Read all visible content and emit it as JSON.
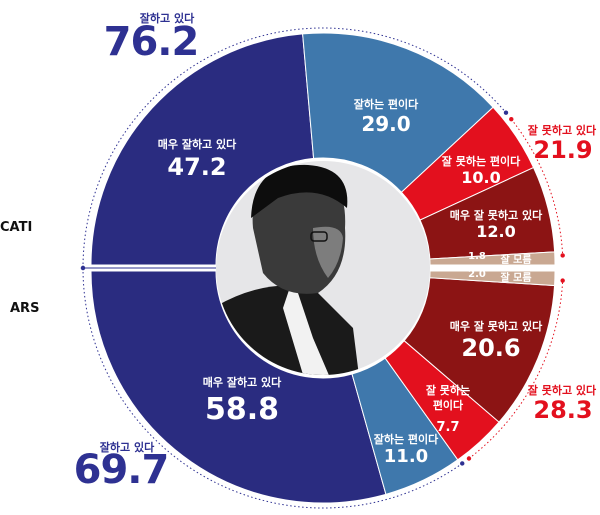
{
  "chart_data": {
    "type": "pie",
    "rings": [
      {
        "name": "CATI",
        "slices": [
          {
            "label": "매우 잘하고 있다",
            "value": 47.2,
            "color": "#2a2c80"
          },
          {
            "label": "잘하는 편이다",
            "value": 29.0,
            "color": "#3f78ac"
          },
          {
            "label": "잘 못하는 편이다",
            "value": 10.0,
            "color": "#e3101e"
          },
          {
            "label": "매우 잘 못하고 있다",
            "value": 12.0,
            "color": "#8c1414"
          },
          {
            "label": "잘 모름",
            "value": 1.8,
            "color": "#c9a892"
          }
        ],
        "totals": {
          "positive": {
            "label": "잘하고 있다",
            "value": "76.2"
          },
          "negative": {
            "label": "잘 못하고 있다",
            "value": "21.9"
          }
        }
      },
      {
        "name": "ARS",
        "slices": [
          {
            "label": "매우 잘하고 있다",
            "value": 58.8,
            "color": "#2a2c80"
          },
          {
            "label": "잘하는 편이다",
            "value": 11.0,
            "color": "#3f78ac"
          },
          {
            "label": "잘 못하는 편이다",
            "value": 7.7,
            "color": "#e3101e"
          },
          {
            "label": "매우 잘 못하고 있다",
            "value": 20.6,
            "color": "#8c1414"
          },
          {
            "label": "잘 모름",
            "value": 2.0,
            "color": "#c9a892"
          }
        ],
        "totals": {
          "positive": {
            "label": "잘하고 있다",
            "value": "69.7"
          },
          "negative": {
            "label": "잘 못하고 있다",
            "value": "28.3"
          }
        }
      }
    ]
  },
  "labels": {
    "cati": "CATI",
    "ars": "ARS",
    "top_pos_label": "잘하고 있다",
    "top_pos_value": "76.2",
    "top_neg_label": "잘 못하고 있다",
    "top_neg_value": "21.9",
    "bot_pos_label": "잘하고 있다",
    "bot_pos_value": "69.7",
    "bot_neg_label": "잘 못하고 있다",
    "bot_neg_value": "28.3",
    "t_very_good": "매우 잘하고 있다",
    "t_very_good_v": "47.2",
    "t_good": "잘하는 편이다",
    "t_good_v": "29.0",
    "t_bad": "잘 못하는 편이다",
    "t_bad_v": "10.0",
    "t_very_bad": "매우 잘 못하고 있다",
    "t_very_bad_v": "12.0",
    "t_dk": "잘 모름",
    "t_dk_v": "1.8",
    "b_very_good": "매우 잘하고 있다",
    "b_very_good_v": "58.8",
    "b_good": "잘하는 편이다",
    "b_good_v": "11.0",
    "b_bad_1": "잘 못하는",
    "b_bad_2": "편이다",
    "b_bad_v": "7.7",
    "b_very_bad": "매우 잘 못하고 있다",
    "b_very_bad_v": "20.6",
    "b_dk": "잘 모름",
    "b_dk_v": "2.0"
  }
}
